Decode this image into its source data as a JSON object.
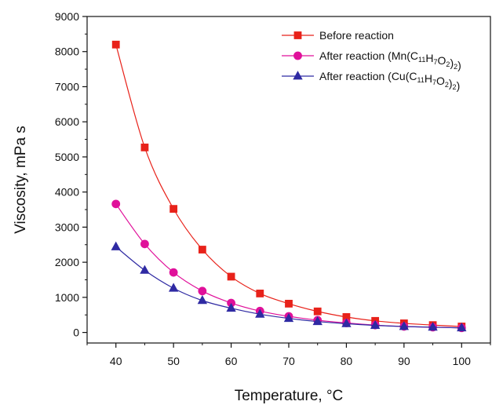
{
  "chart_data": {
    "type": "line",
    "xlabel": "Temperature, °C",
    "ylabel": "Viscosity, mPa s",
    "xlim": [
      35,
      105
    ],
    "ylim": [
      -300,
      9000
    ],
    "x_ticks": [
      40,
      50,
      60,
      70,
      80,
      90,
      100
    ],
    "y_ticks": [
      0,
      1000,
      2000,
      3000,
      4000,
      5000,
      6000,
      7000,
      8000,
      9000
    ],
    "grid": false,
    "legend_position": "top-right",
    "x": [
      40,
      45,
      50,
      55,
      60,
      65,
      70,
      75,
      80,
      85,
      90,
      95,
      100
    ],
    "series": [
      {
        "name": "Before reaction",
        "legend_parts": [
          {
            "t": "Before reaction"
          }
        ],
        "color": "#e8221a",
        "marker": "square",
        "values": [
          8200,
          5270,
          3520,
          2360,
          1590,
          1110,
          820,
          600,
          440,
          330,
          260,
          210,
          170
        ]
      },
      {
        "name": "After reaction (Mn(C11H7O2)2)",
        "legend_parts": [
          {
            "t": "After reaction (Mn(C"
          },
          {
            "s": "11"
          },
          {
            "t": "H"
          },
          {
            "s": "7"
          },
          {
            "t": "O"
          },
          {
            "s": "2"
          },
          {
            "t": ")"
          },
          {
            "s": "2"
          },
          {
            "t": ")"
          }
        ],
        "color": "#e0109a",
        "marker": "circle",
        "values": [
          3660,
          2520,
          1710,
          1180,
          840,
          610,
          460,
          350,
          270,
          210,
          170,
          150,
          130
        ]
      },
      {
        "name": "After reaction (Cu(C11H7O2)2)",
        "legend_parts": [
          {
            "t": "After reaction (Cu(C"
          },
          {
            "s": "11"
          },
          {
            "t": "H"
          },
          {
            "s": "7"
          },
          {
            "t": "O"
          },
          {
            "s": "2"
          },
          {
            "t": ")"
          },
          {
            "s": "2"
          },
          {
            "t": ")"
          }
        ],
        "color": "#2f2aa3",
        "marker": "triangle",
        "values": [
          2440,
          1770,
          1260,
          910,
          690,
          520,
          400,
          310,
          250,
          200,
          170,
          150,
          130
        ]
      }
    ]
  }
}
